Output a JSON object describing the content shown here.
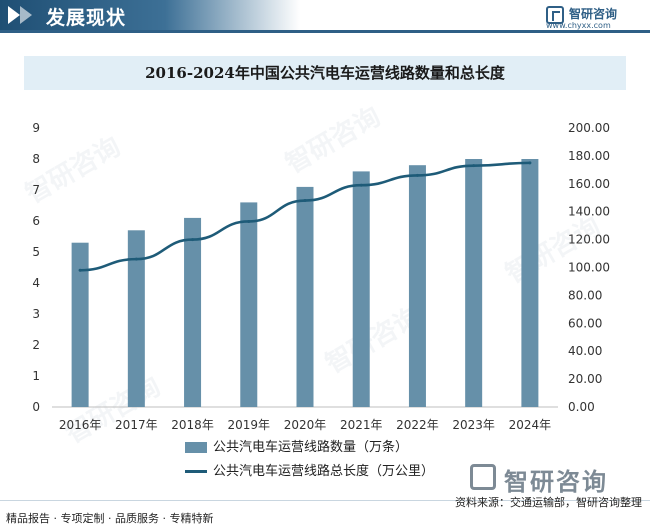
{
  "header": {
    "title": "发展现状",
    "logo_name": "智研咨询",
    "logo_url": "www.chyxx.com"
  },
  "bottom_logo": {
    "name": "智研咨询"
  },
  "watermark": {
    "text": "智研咨询"
  },
  "footer": {
    "left": "精品报告 · 专项定制 · 品质服务 · 专精特新",
    "source": "资料来源：交通运输部，智研咨询整理"
  },
  "colors": {
    "bar": "#6690a9",
    "line": "#1e5b78",
    "header": "#2f5f86",
    "title_bg": "#e1eef6"
  },
  "chart_data": {
    "type": "bar",
    "title": "2016-2024年中国公共汽电车运营线路数量和总长度",
    "categories": [
      "2016年",
      "2017年",
      "2018年",
      "2019年",
      "2020年",
      "2021年",
      "2022年",
      "2023年",
      "2024年"
    ],
    "series": [
      {
        "name": "公共汽电车运营线路数量（万条）",
        "type": "bar",
        "axis": "left",
        "values": [
          5.3,
          5.7,
          6.1,
          6.6,
          7.1,
          7.6,
          7.8,
          8.0,
          8.0
        ]
      },
      {
        "name": "公共汽电车运营线路总长度（万公里）",
        "type": "line",
        "axis": "right",
        "values": [
          98.0,
          106.0,
          120.0,
          133.0,
          148.0,
          159.0,
          166.0,
          173.0,
          175.0
        ]
      }
    ],
    "y_left": {
      "min": 0,
      "max": 9,
      "ticks": [
        "0",
        "1",
        "2",
        "3",
        "4",
        "5",
        "6",
        "7",
        "8",
        "9"
      ]
    },
    "y_right": {
      "min": 0,
      "max": 200,
      "ticks": [
        "0.00",
        "20.00",
        "40.00",
        "60.00",
        "80.00",
        "100.00",
        "120.00",
        "140.00",
        "160.00",
        "180.00",
        "200.00"
      ]
    },
    "grid": false,
    "legend_position": "bottom"
  }
}
